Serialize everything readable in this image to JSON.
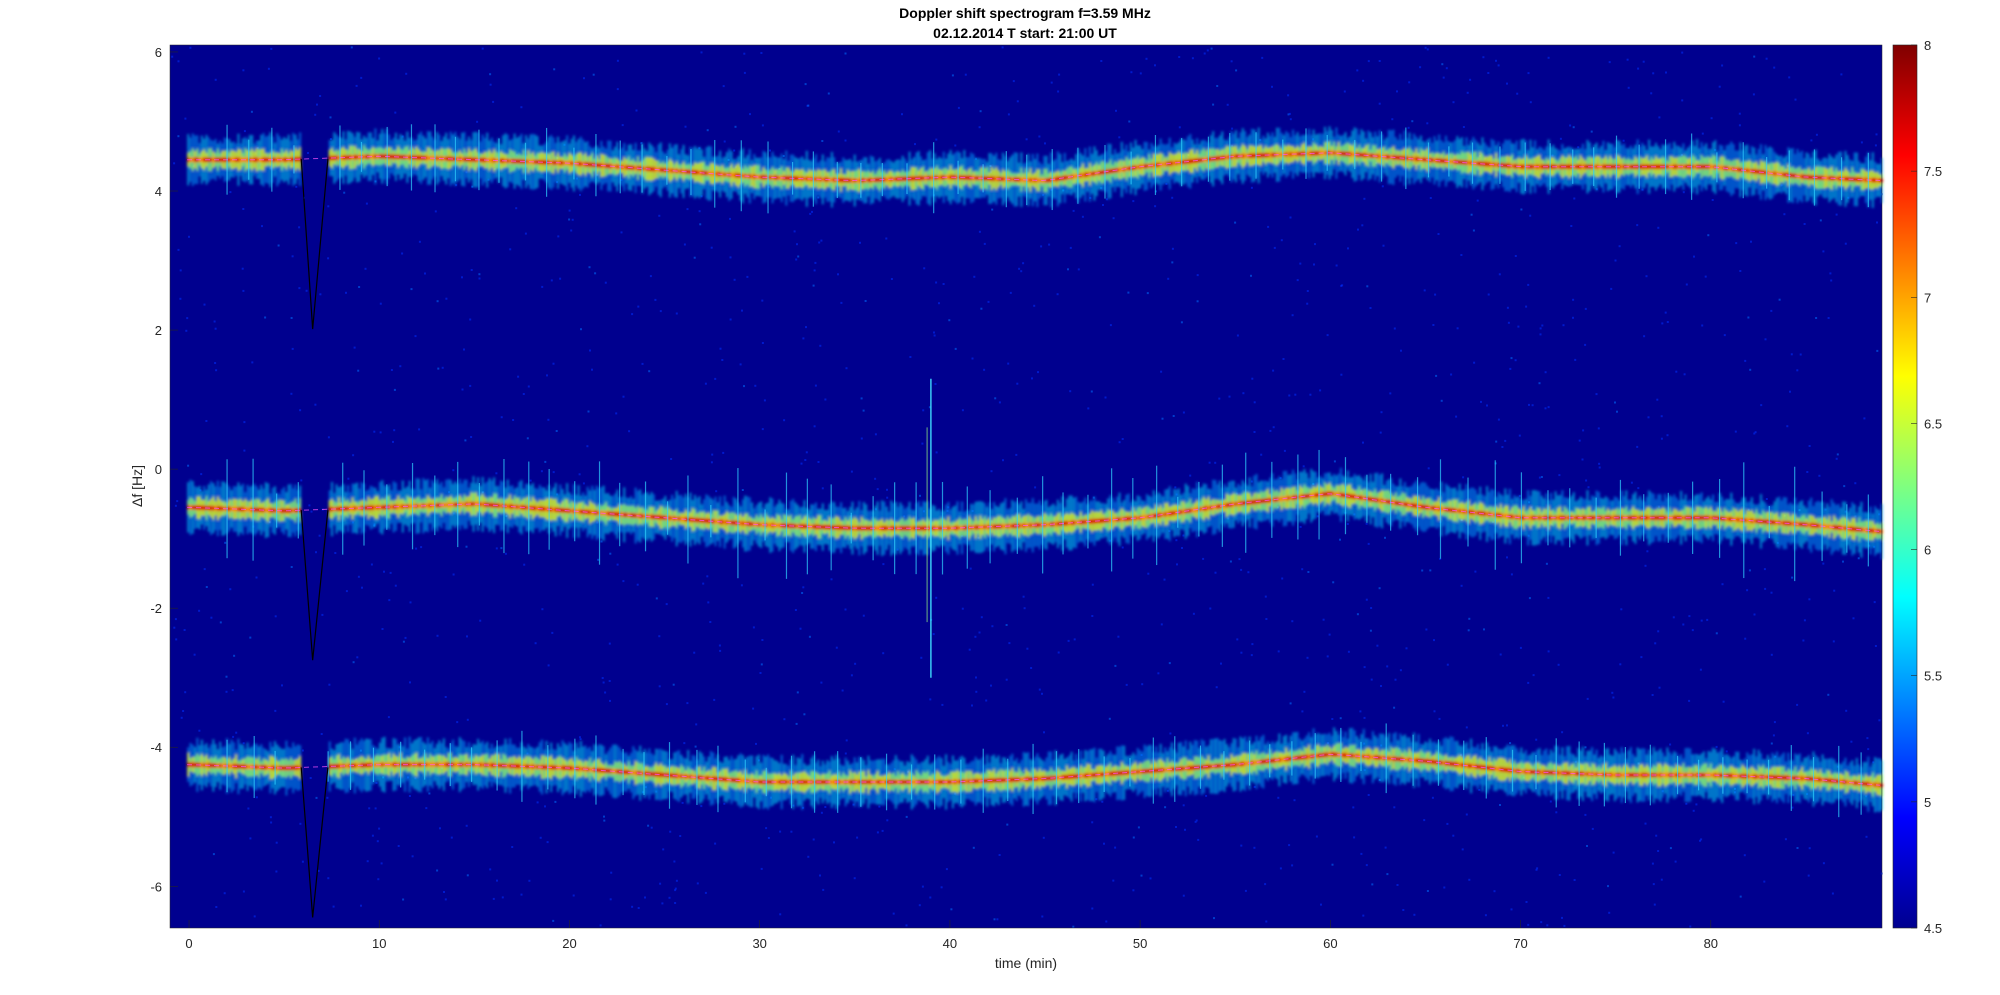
{
  "chart_data": {
    "type": "heatmap",
    "title": "Doppler shift spectrogram f=3.59 MHz",
    "subtitle": "02.12.2014   T start: 21:00 UT",
    "xlabel": "time (min)",
    "ylabel": "Δf [Hz]",
    "xlim": [
      -1,
      89
    ],
    "ylim": [
      -6.6,
      6.1
    ],
    "xticks": [
      0,
      10,
      20,
      30,
      40,
      50,
      60,
      70,
      80
    ],
    "yticks": [
      6,
      4,
      2,
      0,
      -2,
      -4,
      -6
    ],
    "colorbar": {
      "colormap": "jet",
      "min": 4.5,
      "max": 8,
      "ticks": [
        8,
        7.5,
        7,
        6.5,
        6,
        5.5,
        5,
        4.5
      ]
    },
    "grid": false,
    "series": [
      {
        "trace": "upper",
        "x": [
          0,
          5,
          10,
          15,
          20,
          25,
          30,
          35,
          40,
          45,
          50,
          55,
          60,
          65,
          70,
          75,
          80,
          85,
          89
        ],
        "y": [
          4.45,
          4.45,
          4.5,
          4.45,
          4.4,
          4.3,
          4.2,
          4.15,
          4.2,
          4.15,
          4.35,
          4.5,
          4.55,
          4.45,
          4.35,
          4.35,
          4.35,
          4.2,
          4.15
        ]
      },
      {
        "trace": "middle",
        "x": [
          0,
          5,
          10,
          15,
          20,
          25,
          30,
          35,
          40,
          45,
          50,
          55,
          60,
          65,
          70,
          75,
          80,
          85,
          89
        ],
        "y": [
          -0.55,
          -0.6,
          -0.55,
          -0.5,
          -0.6,
          -0.7,
          -0.8,
          -0.85,
          -0.85,
          -0.8,
          -0.7,
          -0.5,
          -0.35,
          -0.55,
          -0.7,
          -0.7,
          -0.7,
          -0.8,
          -0.9
        ]
      },
      {
        "trace": "lower",
        "x": [
          0,
          5,
          10,
          15,
          20,
          25,
          30,
          35,
          40,
          45,
          50,
          55,
          60,
          65,
          70,
          75,
          80,
          85,
          89
        ],
        "y": [
          -4.25,
          -4.3,
          -4.25,
          -4.25,
          -4.3,
          -4.4,
          -4.5,
          -4.5,
          -4.5,
          -4.45,
          -4.35,
          -4.25,
          -4.1,
          -4.2,
          -4.35,
          -4.4,
          -4.4,
          -4.45,
          -4.55
        ]
      }
    ],
    "colors": {
      "background": "#00008f",
      "trace_marker": "#ff55ff",
      "text": "#262626"
    }
  }
}
